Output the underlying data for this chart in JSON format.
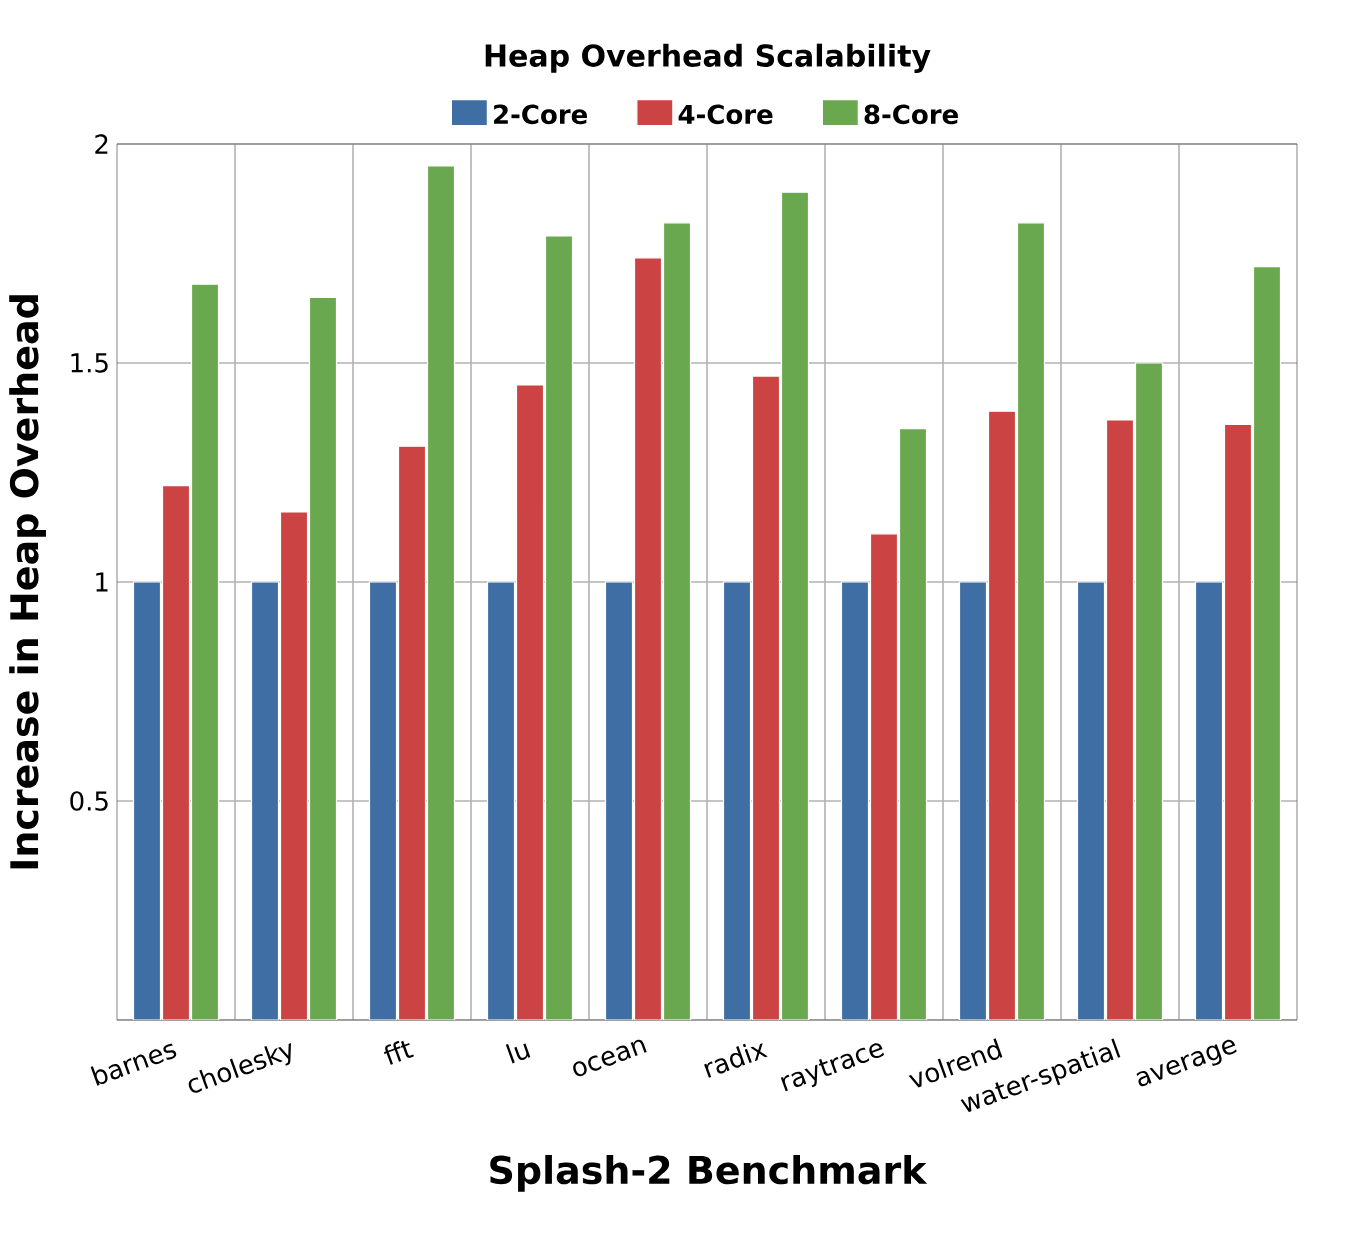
{
  "chart_data": {
    "type": "bar",
    "title": "Heap Overhead Scalability",
    "xlabel": "Splash-2 Benchmark",
    "ylabel": "Increase in Heap Overhead",
    "categories": [
      "barnes",
      "cholesky",
      "fft",
      "lu",
      "ocean",
      "radix",
      "raytrace",
      "volrend",
      "water-spatial",
      "average"
    ],
    "series": [
      {
        "name": "2-Core",
        "color": "#3f6ea4",
        "values": [
          1,
          1,
          1,
          1,
          1,
          1,
          1,
          1,
          1,
          1
        ]
      },
      {
        "name": "4-Core",
        "color": "#cc4343",
        "values": [
          1.22,
          1.16,
          1.31,
          1.45,
          1.74,
          1.47,
          1.11,
          1.39,
          1.37,
          1.36
        ]
      },
      {
        "name": "8-Core",
        "color": "#6aa84f",
        "values": [
          1.68,
          1.65,
          1.95,
          1.79,
          1.82,
          1.89,
          1.35,
          1.82,
          1.5,
          1.72
        ]
      }
    ],
    "ylim": [
      0,
      2
    ],
    "yticks": [
      {
        "value": 0,
        "label": null
      },
      0.5,
      1,
      1.5,
      2
    ],
    "grid": true,
    "legend": "top"
  }
}
